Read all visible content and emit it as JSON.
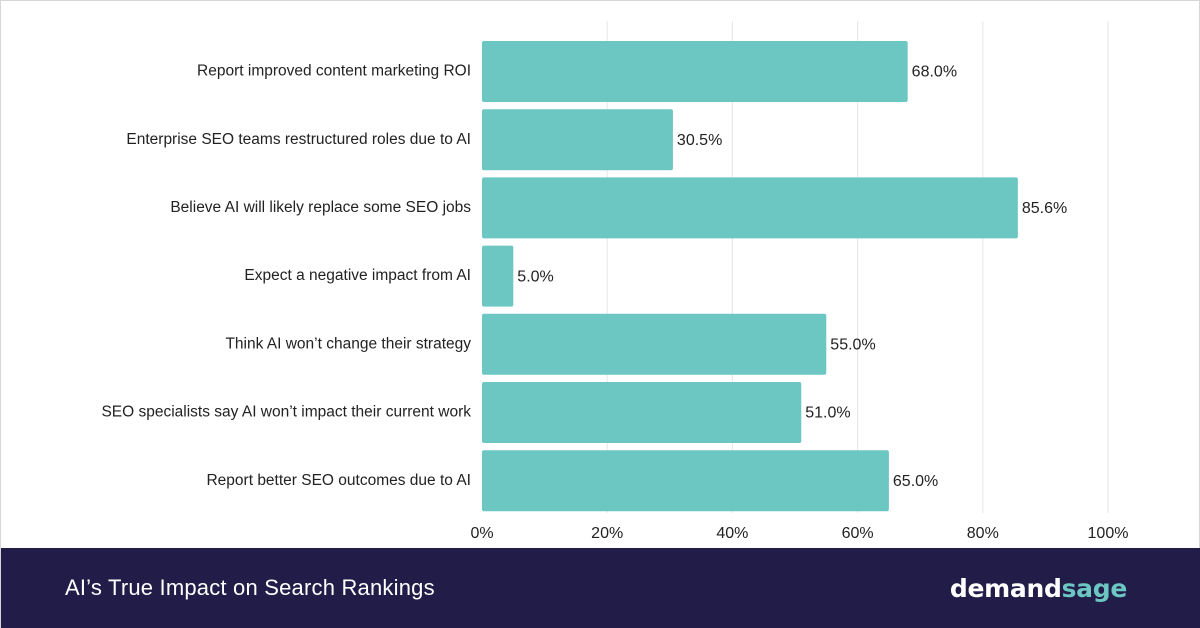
{
  "chart_data": {
    "type": "bar",
    "orientation": "horizontal",
    "categories": [
      "Report improved content marketing ROI",
      "Enterprise SEO teams restructured roles due to AI",
      "Believe AI will likely replace some SEO jobs",
      "Expect a negative impact from AI",
      "Think AI won’t change their strategy",
      "SEO specialists say AI won’t impact their current work",
      "Report better SEO outcomes due to AI"
    ],
    "values": [
      68.0,
      30.5,
      85.6,
      5.0,
      55.0,
      51.0,
      65.0
    ],
    "value_labels": [
      "68.0%",
      "30.5%",
      "85.6%",
      "5.0%",
      "55.0%",
      "51.0%",
      "65.0%"
    ],
    "xlim": [
      0,
      100
    ],
    "x_ticks": [
      0,
      20,
      40,
      60,
      80,
      100
    ],
    "x_tick_labels": [
      "0%",
      "20%",
      "40%",
      "60%",
      "80%",
      "100%"
    ],
    "grid": "vertical",
    "bar_color": "#6cc7c3",
    "grid_color": "#e6e6e6"
  },
  "footer": {
    "title": "AI’s True Impact on Search Rankings",
    "brand_part1": "demand",
    "brand_part2": "sage",
    "background": "#211c48",
    "brand_accent": "#6cc7c3"
  }
}
